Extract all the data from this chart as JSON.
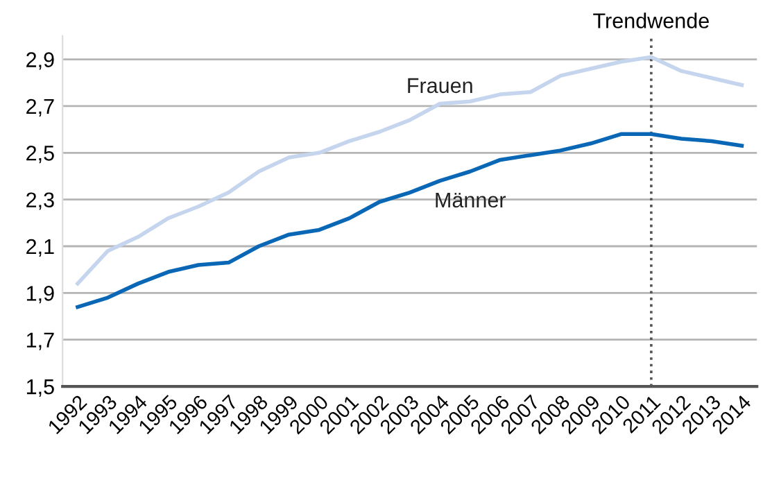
{
  "chart_data": {
    "type": "line",
    "categories": [
      "1992",
      "1993",
      "1994",
      "1995",
      "1996",
      "1997",
      "1998",
      "1999",
      "2000",
      "2001",
      "2002",
      "2003",
      "2004",
      "2005",
      "2006",
      "2007",
      "2008",
      "2009",
      "2010",
      "2011",
      "2012",
      "2013",
      "2014"
    ],
    "series": [
      {
        "name": "Frauen",
        "color": "#c5d5ee",
        "values": [
          1.94,
          2.08,
          2.14,
          2.22,
          2.27,
          2.33,
          2.42,
          2.48,
          2.5,
          2.55,
          2.59,
          2.64,
          2.71,
          2.72,
          2.75,
          2.76,
          2.83,
          2.86,
          2.89,
          2.91,
          2.85,
          2.82,
          2.79
        ]
      },
      {
        "name": "Männer",
        "color": "#0a67b5",
        "values": [
          1.84,
          1.88,
          1.94,
          1.99,
          2.02,
          2.03,
          2.1,
          2.15,
          2.17,
          2.22,
          2.29,
          2.33,
          2.38,
          2.42,
          2.47,
          2.49,
          2.51,
          2.54,
          2.58,
          2.58,
          2.56,
          2.55,
          2.53
        ]
      }
    ],
    "ylim": [
      1.5,
      3.0
    ],
    "yticks": [
      {
        "value": 1.5,
        "label": "1,5"
      },
      {
        "value": 1.7,
        "label": "1,7"
      },
      {
        "value": 1.9,
        "label": "1,9"
      },
      {
        "value": 2.1,
        "label": "2,1"
      },
      {
        "value": 2.3,
        "label": "2,3"
      },
      {
        "value": 2.5,
        "label": "2,5"
      },
      {
        "value": 2.7,
        "label": "2,7"
      },
      {
        "value": 2.9,
        "label": "2,9"
      }
    ],
    "grid": "y",
    "legend": false,
    "ref_lines": [
      {
        "axis": "x",
        "value": "2011",
        "label": "Trendwende",
        "color": "#555555",
        "line_style": "dotted"
      }
    ]
  }
}
